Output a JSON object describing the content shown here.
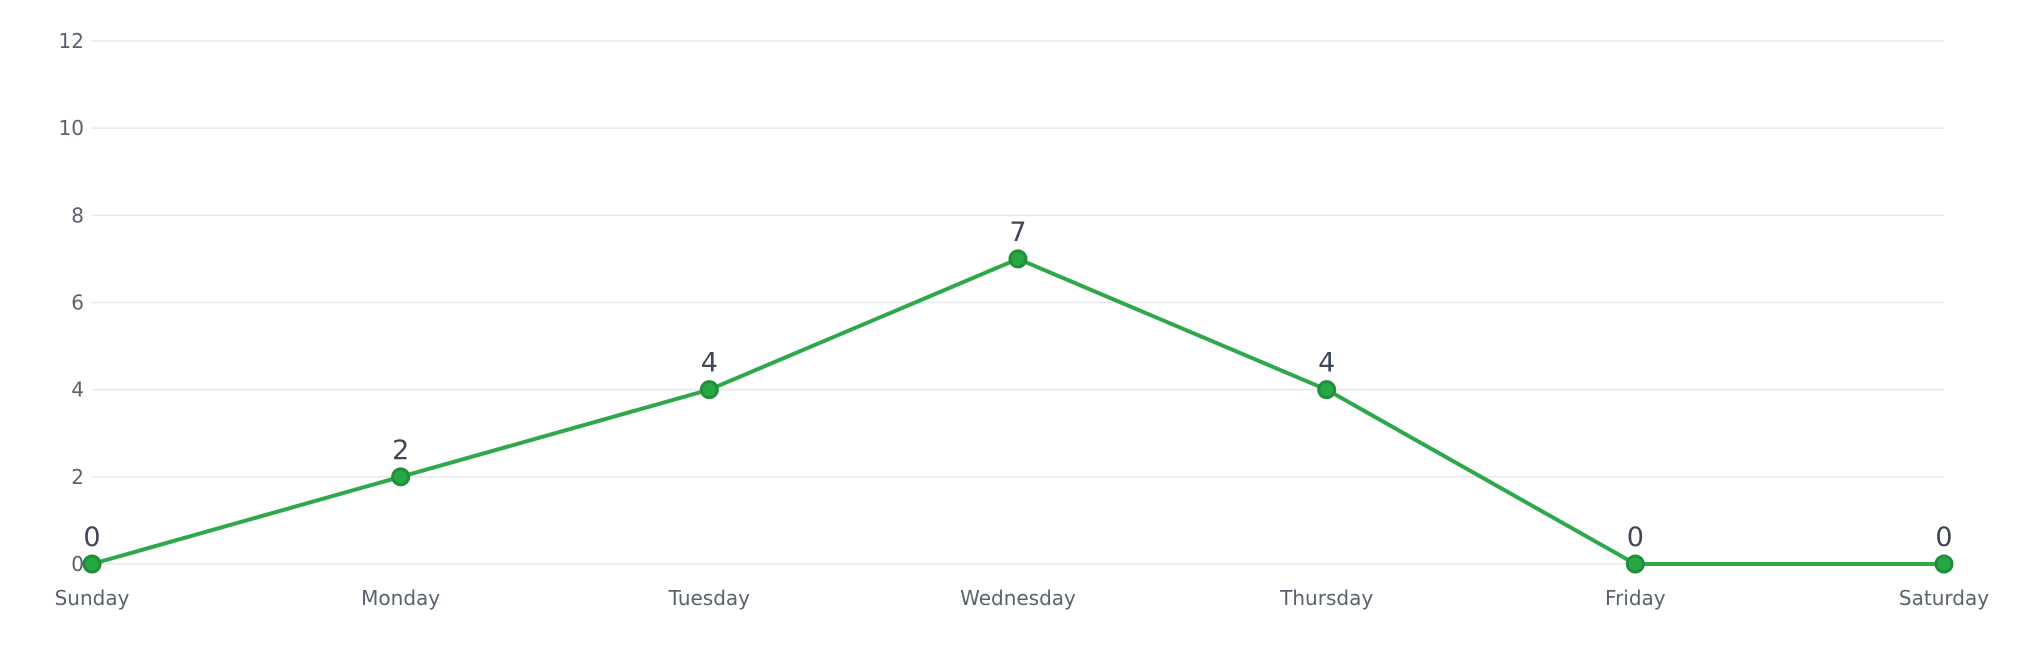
{
  "chart_data": {
    "type": "line",
    "categories": [
      "Sunday",
      "Monday",
      "Tuesday",
      "Wednesday",
      "Thursday",
      "Friday",
      "Saturday"
    ],
    "series": [
      {
        "values": [
          0,
          2,
          4,
          7,
          4,
          0,
          0
        ]
      }
    ],
    "ylim": [
      0,
      12
    ],
    "yticks": [
      0,
      2,
      4,
      6,
      8,
      10,
      12
    ],
    "grid": true,
    "legend": "none",
    "data_labels": true,
    "colors": {
      "line": "#2ea84a",
      "point_fill": "#28a745",
      "point_stroke": "#1f8f3a",
      "grid": "#e5e7eb"
    }
  }
}
